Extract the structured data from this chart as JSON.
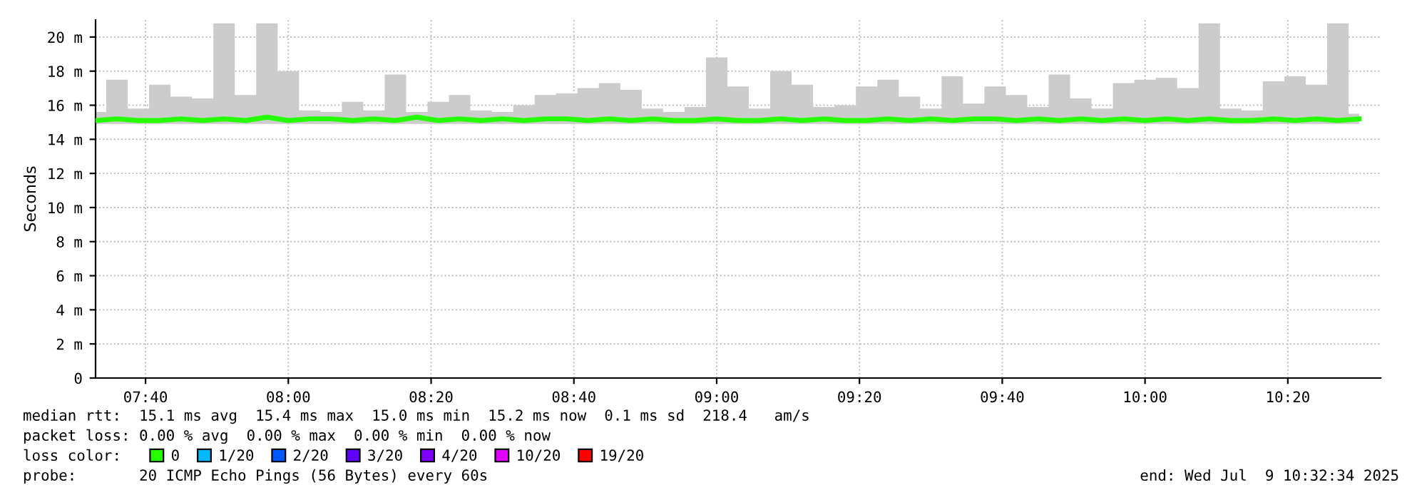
{
  "chart_data": {
    "type": "line",
    "ylabel": "Seconds",
    "legend_title": "loss color:",
    "legend": "bottom",
    "grid": true,
    "xlim": [
      "2025-07-09T07:33",
      "2025-07-09T10:33"
    ],
    "xticks": [
      {
        "value": "2025-07-09T07:40",
        "label": "07:40"
      },
      {
        "value": "2025-07-09T08:00",
        "label": "08:00"
      },
      {
        "value": "2025-07-09T08:20",
        "label": "08:20"
      },
      {
        "value": "2025-07-09T08:40",
        "label": "08:40"
      },
      {
        "value": "2025-07-09T09:00",
        "label": "09:00"
      },
      {
        "value": "2025-07-09T09:20",
        "label": "09:20"
      },
      {
        "value": "2025-07-09T09:40",
        "label": "09:40"
      },
      {
        "value": "2025-07-09T10:00",
        "label": "10:00"
      },
      {
        "value": "2025-07-09T10:20",
        "label": "10:20"
      }
    ],
    "ylim": [
      0,
      21
    ],
    "yticks": [
      0,
      {
        "value": 2,
        "label": "2 m"
      },
      {
        "value": 4,
        "label": "4 m"
      },
      {
        "value": 6,
        "label": "6 m"
      },
      {
        "value": 8,
        "label": "8 m"
      },
      {
        "value": 10,
        "label": "10 m"
      },
      {
        "value": 12,
        "label": "12 m"
      },
      {
        "value": 14,
        "label": "14 m"
      },
      {
        "value": 16,
        "label": "16 m"
      },
      {
        "value": 18,
        "label": "18 m"
      },
      {
        "value": 20,
        "label": "20 m"
      }
    ],
    "x": [
      "2025-07-09T07:33",
      "2025-07-09T07:36",
      "2025-07-09T07:39",
      "2025-07-09T07:42",
      "2025-07-09T07:45",
      "2025-07-09T07:48",
      "2025-07-09T07:51",
      "2025-07-09T07:54",
      "2025-07-09T07:57",
      "2025-07-09T08:00",
      "2025-07-09T08:03",
      "2025-07-09T08:06",
      "2025-07-09T08:09",
      "2025-07-09T08:12",
      "2025-07-09T08:15",
      "2025-07-09T08:18",
      "2025-07-09T08:21",
      "2025-07-09T08:24",
      "2025-07-09T08:27",
      "2025-07-09T08:30",
      "2025-07-09T08:33",
      "2025-07-09T08:36",
      "2025-07-09T08:39",
      "2025-07-09T08:42",
      "2025-07-09T08:45",
      "2025-07-09T08:48",
      "2025-07-09T08:51",
      "2025-07-09T08:54",
      "2025-07-09T08:57",
      "2025-07-09T09:00",
      "2025-07-09T09:03",
      "2025-07-09T09:06",
      "2025-07-09T09:09",
      "2025-07-09T09:12",
      "2025-07-09T09:15",
      "2025-07-09T09:18",
      "2025-07-09T09:21",
      "2025-07-09T09:24",
      "2025-07-09T09:27",
      "2025-07-09T09:30",
      "2025-07-09T09:33",
      "2025-07-09T09:36",
      "2025-07-09T09:39",
      "2025-07-09T09:42",
      "2025-07-09T09:45",
      "2025-07-09T09:48",
      "2025-07-09T09:51",
      "2025-07-09T09:54",
      "2025-07-09T09:57",
      "2025-07-09T10:00",
      "2025-07-09T10:03",
      "2025-07-09T10:06",
      "2025-07-09T10:09",
      "2025-07-09T10:12",
      "2025-07-09T10:15",
      "2025-07-09T10:18",
      "2025-07-09T10:21",
      "2025-07-09T10:24",
      "2025-07-09T10:27",
      "2025-07-09T10:30"
    ],
    "series": [
      {
        "name": "0",
        "color": "#26ff00",
        "lower": [
          14.9,
          14.9,
          14.9,
          14.9,
          14.9,
          14.9,
          14.9,
          14.9,
          14.9,
          14.9,
          14.9,
          14.9,
          14.9,
          14.9,
          14.9,
          14.9,
          14.9,
          14.9,
          14.9,
          14.9,
          14.9,
          14.9,
          14.9,
          14.9,
          14.9,
          14.9,
          14.9,
          14.9,
          14.9,
          14.9,
          14.9,
          14.9,
          14.9,
          14.9,
          14.9,
          14.9,
          14.9,
          14.9,
          14.9,
          14.9,
          14.9,
          14.9,
          14.9,
          14.9,
          14.9,
          14.9,
          14.9,
          14.9,
          14.9,
          14.9,
          14.9,
          14.9,
          14.9,
          14.9,
          14.9,
          14.9,
          14.9,
          14.9,
          14.9,
          14.9
        ],
        "upper": [
          15.6,
          17.5,
          15.8,
          17.2,
          16.5,
          16.4,
          20.8,
          16.6,
          20.8,
          18.0,
          15.7,
          15.6,
          16.2,
          15.7,
          17.8,
          15.6,
          16.2,
          16.6,
          15.7,
          15.6,
          16.0,
          16.6,
          16.7,
          17.0,
          17.3,
          16.9,
          15.8,
          15.6,
          15.9,
          18.8,
          17.1,
          15.8,
          18.0,
          17.2,
          15.9,
          16.0,
          17.1,
          17.5,
          16.5,
          15.8,
          17.7,
          16.1,
          17.1,
          16.6,
          15.9,
          17.8,
          16.4,
          15.8,
          17.3,
          17.5,
          17.6,
          17.0,
          20.8,
          15.8,
          15.7,
          17.4,
          17.7,
          17.2,
          20.8,
          15.5
        ],
        "values": [
          15.1,
          15.2,
          15.1,
          15.1,
          15.2,
          15.1,
          15.2,
          15.1,
          15.3,
          15.1,
          15.2,
          15.2,
          15.1,
          15.2,
          15.1,
          15.3,
          15.1,
          15.2,
          15.1,
          15.2,
          15.1,
          15.2,
          15.2,
          15.1,
          15.2,
          15.1,
          15.2,
          15.1,
          15.1,
          15.2,
          15.1,
          15.1,
          15.2,
          15.1,
          15.2,
          15.1,
          15.1,
          15.2,
          15.1,
          15.2,
          15.1,
          15.2,
          15.2,
          15.1,
          15.2,
          15.1,
          15.2,
          15.1,
          15.2,
          15.1,
          15.2,
          15.1,
          15.2,
          15.1,
          15.1,
          15.2,
          15.1,
          15.2,
          15.1,
          15.2
        ]
      },
      {
        "name": "1/20",
        "color": "#00b8ff",
        "values": [
          null,
          null,
          null,
          null,
          null,
          null,
          null,
          null,
          null,
          null,
          null,
          null,
          null,
          null,
          null,
          null,
          null,
          null,
          null,
          null,
          null,
          null,
          null,
          null,
          null,
          null,
          null,
          null,
          null,
          null,
          null,
          null,
          null,
          null,
          null,
          null,
          null,
          null,
          null,
          null,
          null,
          null,
          null,
          null,
          null,
          null,
          null,
          null,
          null,
          null,
          null,
          null,
          null,
          null,
          null,
          null,
          null,
          null,
          null,
          null
        ]
      },
      {
        "name": "2/20",
        "color": "#0059ff",
        "values": [
          null,
          null,
          null,
          null,
          null,
          null,
          null,
          null,
          null,
          null,
          null,
          null,
          null,
          null,
          null,
          null,
          null,
          null,
          null,
          null,
          null,
          null,
          null,
          null,
          null,
          null,
          null,
          null,
          null,
          null,
          null,
          null,
          null,
          null,
          null,
          null,
          null,
          null,
          null,
          null,
          null,
          null,
          null,
          null,
          null,
          null,
          null,
          null,
          null,
          null,
          null,
          null,
          null,
          null,
          null,
          null,
          null,
          null,
          null,
          null
        ]
      },
      {
        "name": "3/20",
        "color": "#5e00ff",
        "values": [
          null,
          null,
          null,
          null,
          null,
          null,
          null,
          null,
          null,
          null,
          null,
          null,
          null,
          null,
          null,
          null,
          null,
          null,
          null,
          null,
          null,
          null,
          null,
          null,
          null,
          null,
          null,
          null,
          null,
          null,
          null,
          null,
          null,
          null,
          null,
          null,
          null,
          null,
          null,
          null,
          null,
          null,
          null,
          null,
          null,
          null,
          null,
          null,
          null,
          null,
          null,
          null,
          null,
          null,
          null,
          null,
          null,
          null,
          null,
          null
        ]
      },
      {
        "name": "4/20",
        "color": "#7e00ff",
        "values": [
          null,
          null,
          null,
          null,
          null,
          null,
          null,
          null,
          null,
          null,
          null,
          null,
          null,
          null,
          null,
          null,
          null,
          null,
          null,
          null,
          null,
          null,
          null,
          null,
          null,
          null,
          null,
          null,
          null,
          null,
          null,
          null,
          null,
          null,
          null,
          null,
          null,
          null,
          null,
          null,
          null,
          null,
          null,
          null,
          null,
          null,
          null,
          null,
          null,
          null,
          null,
          null,
          null,
          null,
          null,
          null,
          null,
          null,
          null,
          null
        ]
      },
      {
        "name": "10/20",
        "color": "#dd00ff",
        "values": [
          null,
          null,
          null,
          null,
          null,
          null,
          null,
          null,
          null,
          null,
          null,
          null,
          null,
          null,
          null,
          null,
          null,
          null,
          null,
          null,
          null,
          null,
          null,
          null,
          null,
          null,
          null,
          null,
          null,
          null,
          null,
          null,
          null,
          null,
          null,
          null,
          null,
          null,
          null,
          null,
          null,
          null,
          null,
          null,
          null,
          null,
          null,
          null,
          null,
          null,
          null,
          null,
          null,
          null,
          null,
          null,
          null,
          null,
          null,
          null
        ]
      },
      {
        "name": "19/20",
        "color": "#ff0000",
        "values": [
          null,
          null,
          null,
          null,
          null,
          null,
          null,
          null,
          null,
          null,
          null,
          null,
          null,
          null,
          null,
          null,
          null,
          null,
          null,
          null,
          null,
          null,
          null,
          null,
          null,
          null,
          null,
          null,
          null,
          null,
          null,
          null,
          null,
          null,
          null,
          null,
          null,
          null,
          null,
          null,
          null,
          null,
          null,
          null,
          null,
          null,
          null,
          null,
          null,
          null,
          null,
          null,
          null,
          null,
          null,
          null,
          null,
          null,
          null,
          null
        ]
      }
    ],
    "annotations": [
      "median rtt:  15.1 ms avg  15.4 ms max  15.0 ms min  15.2 ms now  0.1 ms sd  218.4   am/s",
      "packet loss: 0.00 % avg  0.00 % max  0.00 % min  0.00 % now",
      "probe:       20 ICMP Echo Pings (56 Bytes) every 60s",
      "end: Wed Jul  9 10:32:34 2025"
    ]
  }
}
